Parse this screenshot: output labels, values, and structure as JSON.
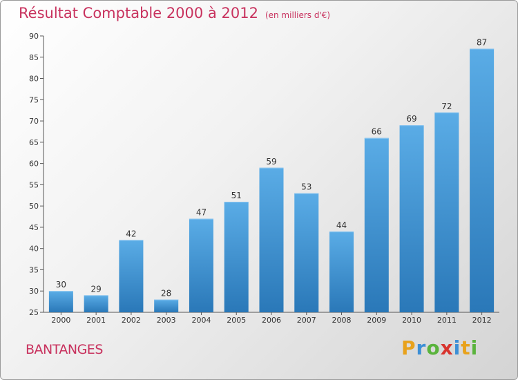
{
  "header": {
    "title": "Résultat Comptable 2000 à 2012",
    "subtitle": "(en milliers d'€)"
  },
  "footer": {
    "town": "BANTANGES"
  },
  "logo": {
    "letters": [
      "P",
      "r",
      "o",
      "x",
      "i",
      "t",
      "i"
    ],
    "colors": [
      "#e8a21c",
      "#3c8fd6",
      "#5ab33c",
      "#d8342e",
      "#3c8fd6",
      "#e8a21c",
      "#5ab33c"
    ]
  },
  "colors": {
    "bar_top": "#5aace6",
    "bar_bottom": "#2a78b8",
    "title": "#c8325e"
  },
  "chart_data": {
    "type": "bar",
    "title": "Résultat Comptable 2000 à 2012",
    "subtitle": "(en milliers d'€)",
    "xlabel": "",
    "ylabel": "",
    "categories": [
      "2000",
      "2001",
      "2002",
      "2003",
      "2004",
      "2005",
      "2006",
      "2007",
      "2008",
      "2009",
      "2010",
      "2011",
      "2012"
    ],
    "values": [
      30,
      29,
      42,
      28,
      47,
      51,
      59,
      53,
      44,
      66,
      69,
      72,
      87
    ],
    "ylim": [
      25,
      90
    ],
    "yticks": [
      25,
      30,
      35,
      40,
      45,
      50,
      55,
      60,
      65,
      70,
      75,
      80,
      85,
      90
    ],
    "grid": false,
    "legend": "none"
  }
}
